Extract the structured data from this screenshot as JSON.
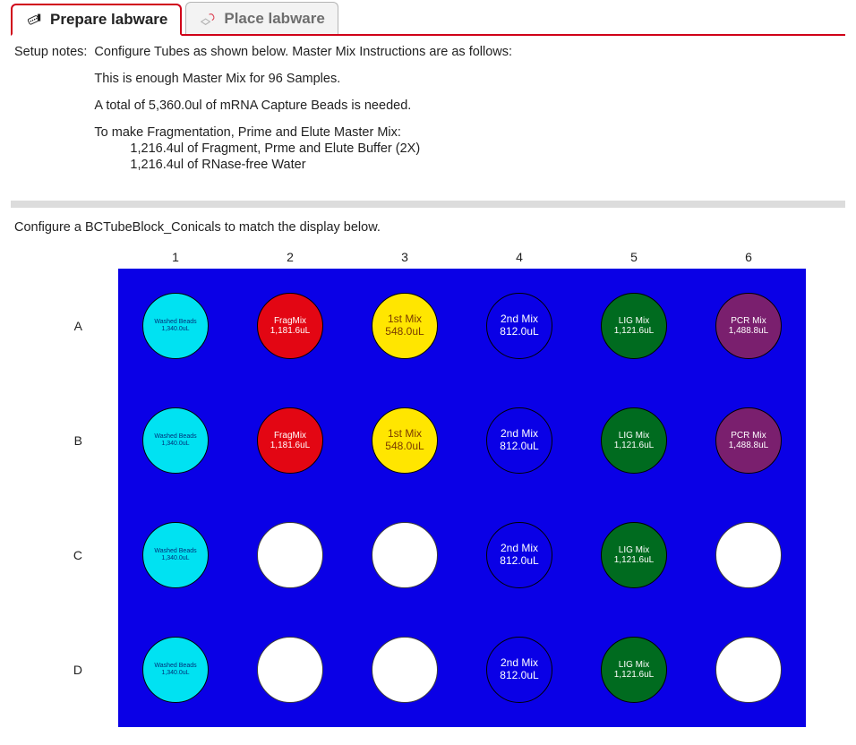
{
  "tabs": {
    "prepare": {
      "label": "Prepare labware",
      "active": true
    },
    "place": {
      "label": "Place labware",
      "active": false
    }
  },
  "notes": {
    "label": "Setup notes:",
    "lines": [
      "Configure Tubes as shown below. Master Mix Instructions are as follows:",
      "This is enough Master Mix for 96 Samples.",
      "A total of 5,360.0ul of mRNA Capture Beads is needed.",
      "To make Fragmentation, Prime and Elute Master Mix:"
    ],
    "indent_lines": [
      "1,216.4ul of Fragment, Prme and Elute Buffer (2X)",
      "1,216.4ul of RNase-free Water"
    ]
  },
  "instruction": "Configure a BCTubeBlock_Conicals to match the display below.",
  "plate": {
    "background_color": "#0a00e6",
    "colLabels": [
      "1",
      "2",
      "3",
      "4",
      "5",
      "6"
    ],
    "rowLabels": [
      "A",
      "B",
      "C",
      "D"
    ],
    "wells": {
      "A1": {
        "label": "Washed Beads",
        "vol": "1,340.0uL",
        "fill": "#00e2f2",
        "text": "#00307a",
        "fs": 7
      },
      "A2": {
        "label": "FragMix",
        "vol": "1,181.6uL",
        "fill": "#e30613",
        "text": "#ffffff",
        "fs": 10
      },
      "A3": {
        "label": "1st Mix",
        "vol": "548.0uL",
        "fill": "#ffe600",
        "text": "#7a3a00",
        "fs": 12
      },
      "A4": {
        "label": "2nd Mix",
        "vol": "812.0uL",
        "fill": "#0a00e6",
        "text": "#ffffff",
        "fs": 12
      },
      "A5": {
        "label": "LIG Mix",
        "vol": "1,121.6uL",
        "fill": "#006b1f",
        "text": "#ffffff",
        "fs": 10
      },
      "A6": {
        "label": "PCR Mix",
        "vol": "1,488.8uL",
        "fill": "#7a1f6e",
        "text": "#ffffff",
        "fs": 10
      },
      "B1": {
        "label": "Washed Beads",
        "vol": "1,340.0uL",
        "fill": "#00e2f2",
        "text": "#00307a",
        "fs": 7
      },
      "B2": {
        "label": "FragMix",
        "vol": "1,181.6uL",
        "fill": "#e30613",
        "text": "#ffffff",
        "fs": 10
      },
      "B3": {
        "label": "1st Mix",
        "vol": "548.0uL",
        "fill": "#ffe600",
        "text": "#7a3a00",
        "fs": 12
      },
      "B4": {
        "label": "2nd Mix",
        "vol": "812.0uL",
        "fill": "#0a00e6",
        "text": "#ffffff",
        "fs": 12
      },
      "B5": {
        "label": "LIG Mix",
        "vol": "1,121.6uL",
        "fill": "#006b1f",
        "text": "#ffffff",
        "fs": 10
      },
      "B6": {
        "label": "PCR Mix",
        "vol": "1,488.8uL",
        "fill": "#7a1f6e",
        "text": "#ffffff",
        "fs": 10
      },
      "C1": {
        "label": "Washed Beads",
        "vol": "1,340.0uL",
        "fill": "#00e2f2",
        "text": "#00307a",
        "fs": 7
      },
      "C2": null,
      "C3": null,
      "C4": {
        "label": "2nd Mix",
        "vol": "812.0uL",
        "fill": "#0a00e6",
        "text": "#ffffff",
        "fs": 12
      },
      "C5": {
        "label": "LIG Mix",
        "vol": "1,121.6uL",
        "fill": "#006b1f",
        "text": "#ffffff",
        "fs": 10
      },
      "C6": null,
      "D1": {
        "label": "Washed Beads",
        "vol": "1,340.0uL",
        "fill": "#00e2f2",
        "text": "#00307a",
        "fs": 7
      },
      "D2": null,
      "D3": null,
      "D4": {
        "label": "2nd Mix",
        "vol": "812.0uL",
        "fill": "#0a00e6",
        "text": "#ffffff",
        "fs": 12
      },
      "D5": {
        "label": "LIG Mix",
        "vol": "1,121.6uL",
        "fill": "#006b1f",
        "text": "#ffffff",
        "fs": 10
      },
      "D6": null
    }
  }
}
